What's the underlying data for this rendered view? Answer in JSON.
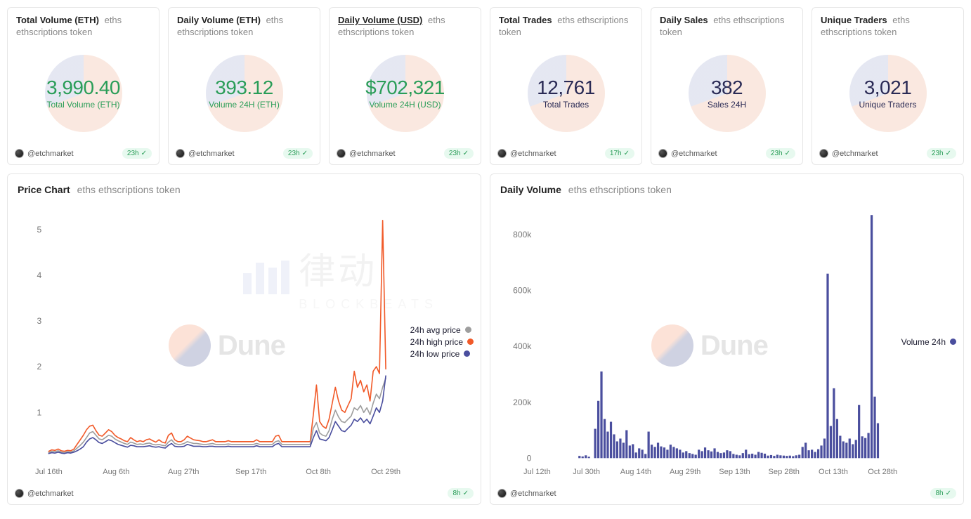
{
  "common": {
    "author": "@etchmarket",
    "subtitle_suffix": "eths ethscriptions token"
  },
  "colors": {
    "green": "#2a9d58",
    "navy": "#2a2a55",
    "orange": "#f15a29",
    "blue": "#4a4e9e",
    "grey": "#9e9e9e",
    "badge_bg": "#e7f9ef",
    "pie_a": "#f6d6c6",
    "pie_b": "#d0d4e8"
  },
  "stats": [
    {
      "title": "Total Volume (ETH)",
      "title_underline": false,
      "value": "3,990.40",
      "sub": "Total Volume (ETH)",
      "value_color": "green",
      "updated": "23h"
    },
    {
      "title": "Daily Volume (ETH)",
      "title_underline": false,
      "value": "393.12",
      "sub": "Volume 24H (ETH)",
      "value_color": "green",
      "updated": "23h"
    },
    {
      "title": "Daily Volume (USD)",
      "title_underline": true,
      "value": "$702,321",
      "sub": "Volume 24H (USD)",
      "value_color": "green",
      "updated": "23h"
    },
    {
      "title": "Total Trades",
      "title_underline": false,
      "value": "12,761",
      "sub": "Total Trades",
      "value_color": "navy",
      "updated": "17h"
    },
    {
      "title": "Daily Sales",
      "title_underline": false,
      "value": "382",
      "sub": "Sales 24H",
      "value_color": "navy",
      "updated": "23h"
    },
    {
      "title": "Unique Traders",
      "title_underline": false,
      "value": "3,021",
      "sub": "Unique Traders",
      "value_color": "navy",
      "updated": "23h"
    }
  ],
  "price_chart": {
    "title": "Price Chart",
    "updated": "8h",
    "ylim": [
      0,
      5.5
    ],
    "yticks": [
      1,
      2,
      3,
      4,
      5
    ],
    "xlabels": [
      "Jul 16th",
      "Aug 6th",
      "Aug 27th",
      "Sep 17th",
      "Oct 8th",
      "Oct 29th"
    ],
    "legend": [
      {
        "label": "24h avg price",
        "color": "#9e9e9e"
      },
      {
        "label": "24h high price",
        "color": "#f15a29"
      },
      {
        "label": "24h low price",
        "color": "#4a4e9e"
      }
    ],
    "n_points": 108,
    "series": {
      "avg": [
        0.12,
        0.15,
        0.14,
        0.16,
        0.13,
        0.12,
        0.14,
        0.13,
        0.16,
        0.22,
        0.28,
        0.35,
        0.45,
        0.55,
        0.58,
        0.5,
        0.42,
        0.4,
        0.45,
        0.5,
        0.48,
        0.42,
        0.38,
        0.35,
        0.32,
        0.3,
        0.35,
        0.33,
        0.3,
        0.31,
        0.3,
        0.32,
        0.33,
        0.3,
        0.29,
        0.3,
        0.28,
        0.27,
        0.35,
        0.4,
        0.32,
        0.3,
        0.3,
        0.32,
        0.36,
        0.34,
        0.32,
        0.32,
        0.31,
        0.3,
        0.3,
        0.31,
        0.32,
        0.3,
        0.3,
        0.3,
        0.3,
        0.31,
        0.3,
        0.3,
        0.3,
        0.3,
        0.3,
        0.3,
        0.3,
        0.3,
        0.32,
        0.3,
        0.3,
        0.3,
        0.3,
        0.3,
        0.36,
        0.38,
        0.3,
        0.3,
        0.3,
        0.3,
        0.3,
        0.3,
        0.3,
        0.3,
        0.3,
        0.3,
        0.65,
        0.78,
        0.55,
        0.5,
        0.48,
        0.6,
        0.85,
        1.05,
        0.9,
        0.8,
        0.78,
        0.85,
        0.92,
        1.1,
        1.05,
        1.15,
        1.0,
        1.1,
        0.95,
        1.2,
        1.4,
        1.3,
        1.55,
        1.75
      ],
      "high": [
        0.15,
        0.18,
        0.17,
        0.2,
        0.16,
        0.15,
        0.17,
        0.16,
        0.2,
        0.3,
        0.4,
        0.5,
        0.62,
        0.7,
        0.72,
        0.6,
        0.5,
        0.48,
        0.55,
        0.62,
        0.58,
        0.5,
        0.45,
        0.42,
        0.38,
        0.36,
        0.45,
        0.4,
        0.36,
        0.38,
        0.36,
        0.4,
        0.42,
        0.38,
        0.35,
        0.4,
        0.35,
        0.33,
        0.5,
        0.55,
        0.4,
        0.36,
        0.36,
        0.4,
        0.48,
        0.44,
        0.4,
        0.39,
        0.38,
        0.36,
        0.36,
        0.38,
        0.4,
        0.36,
        0.36,
        0.36,
        0.36,
        0.38,
        0.36,
        0.36,
        0.36,
        0.36,
        0.36,
        0.36,
        0.36,
        0.36,
        0.4,
        0.36,
        0.36,
        0.36,
        0.36,
        0.36,
        0.48,
        0.5,
        0.36,
        0.36,
        0.36,
        0.36,
        0.36,
        0.36,
        0.36,
        0.36,
        0.36,
        0.36,
        0.95,
        1.6,
        0.8,
        0.7,
        0.65,
        0.85,
        1.2,
        1.55,
        1.25,
        1.05,
        1.0,
        1.15,
        1.3,
        1.9,
        1.55,
        1.7,
        1.45,
        1.6,
        1.25,
        1.9,
        2.0,
        1.85,
        5.2,
        1.95
      ],
      "low": [
        0.1,
        0.12,
        0.11,
        0.13,
        0.11,
        0.1,
        0.12,
        0.11,
        0.13,
        0.16,
        0.2,
        0.25,
        0.35,
        0.42,
        0.45,
        0.4,
        0.34,
        0.32,
        0.36,
        0.4,
        0.38,
        0.34,
        0.3,
        0.28,
        0.26,
        0.24,
        0.28,
        0.27,
        0.25,
        0.25,
        0.25,
        0.26,
        0.27,
        0.25,
        0.24,
        0.25,
        0.23,
        0.22,
        0.28,
        0.32,
        0.26,
        0.25,
        0.25,
        0.26,
        0.3,
        0.28,
        0.26,
        0.26,
        0.26,
        0.25,
        0.25,
        0.26,
        0.26,
        0.25,
        0.25,
        0.25,
        0.25,
        0.26,
        0.25,
        0.25,
        0.25,
        0.25,
        0.25,
        0.25,
        0.25,
        0.25,
        0.27,
        0.25,
        0.25,
        0.25,
        0.25,
        0.25,
        0.3,
        0.32,
        0.25,
        0.25,
        0.25,
        0.25,
        0.25,
        0.25,
        0.25,
        0.25,
        0.25,
        0.25,
        0.45,
        0.6,
        0.42,
        0.4,
        0.38,
        0.45,
        0.62,
        0.8,
        0.7,
        0.6,
        0.58,
        0.65,
        0.72,
        0.85,
        0.8,
        0.88,
        0.78,
        0.85,
        0.75,
        0.92,
        1.1,
        1.0,
        1.25,
        1.8
      ]
    }
  },
  "volume_chart": {
    "title": "Daily Volume",
    "updated": "8h",
    "ylim": [
      0,
      900000
    ],
    "yticks": [
      0,
      200000,
      400000,
      600000,
      800000
    ],
    "yticklabels": [
      "0",
      "200k",
      "400k",
      "600k",
      "800k"
    ],
    "xlabels": [
      "Jul 12th",
      "Jul 30th",
      "Aug 14th",
      "Aug 29th",
      "Sep 13th",
      "Sep 28th",
      "Oct 13th",
      "Oct 28th"
    ],
    "legend": [
      {
        "label": "Volume 24h",
        "color": "#4a4e9e"
      }
    ],
    "bar_color": "#4a4e9e",
    "n_bars": 110,
    "values": [
      0,
      0,
      0,
      0,
      0,
      0,
      0,
      0,
      0,
      0,
      0,
      0,
      0,
      8000,
      6000,
      10000,
      5000,
      0,
      105000,
      205000,
      310000,
      140000,
      95000,
      130000,
      85000,
      60000,
      70000,
      55000,
      100000,
      45000,
      50000,
      20000,
      35000,
      30000,
      15000,
      95000,
      48000,
      40000,
      55000,
      42000,
      38000,
      30000,
      48000,
      40000,
      35000,
      30000,
      20000,
      25000,
      18000,
      15000,
      12000,
      30000,
      25000,
      38000,
      28000,
      24000,
      35000,
      22000,
      18000,
      20000,
      28000,
      25000,
      15000,
      12000,
      10000,
      18000,
      30000,
      14000,
      16000,
      12000,
      22000,
      19000,
      16000,
      9000,
      11000,
      8000,
      12000,
      10000,
      9000,
      8000,
      9000,
      7000,
      10000,
      12000,
      40000,
      55000,
      28000,
      30000,
      22000,
      32000,
      45000,
      70000,
      660000,
      115000,
      250000,
      140000,
      80000,
      60000,
      55000,
      70000,
      50000,
      65000,
      190000,
      78000,
      72000,
      90000,
      870000,
      220000,
      125000,
      0
    ],
    "bar_width_ratio": 0.72
  },
  "watermarks": {
    "dune": "Dune",
    "blockbeats_cn": "律动",
    "blockbeats_en": "BLOCKBEATS"
  }
}
